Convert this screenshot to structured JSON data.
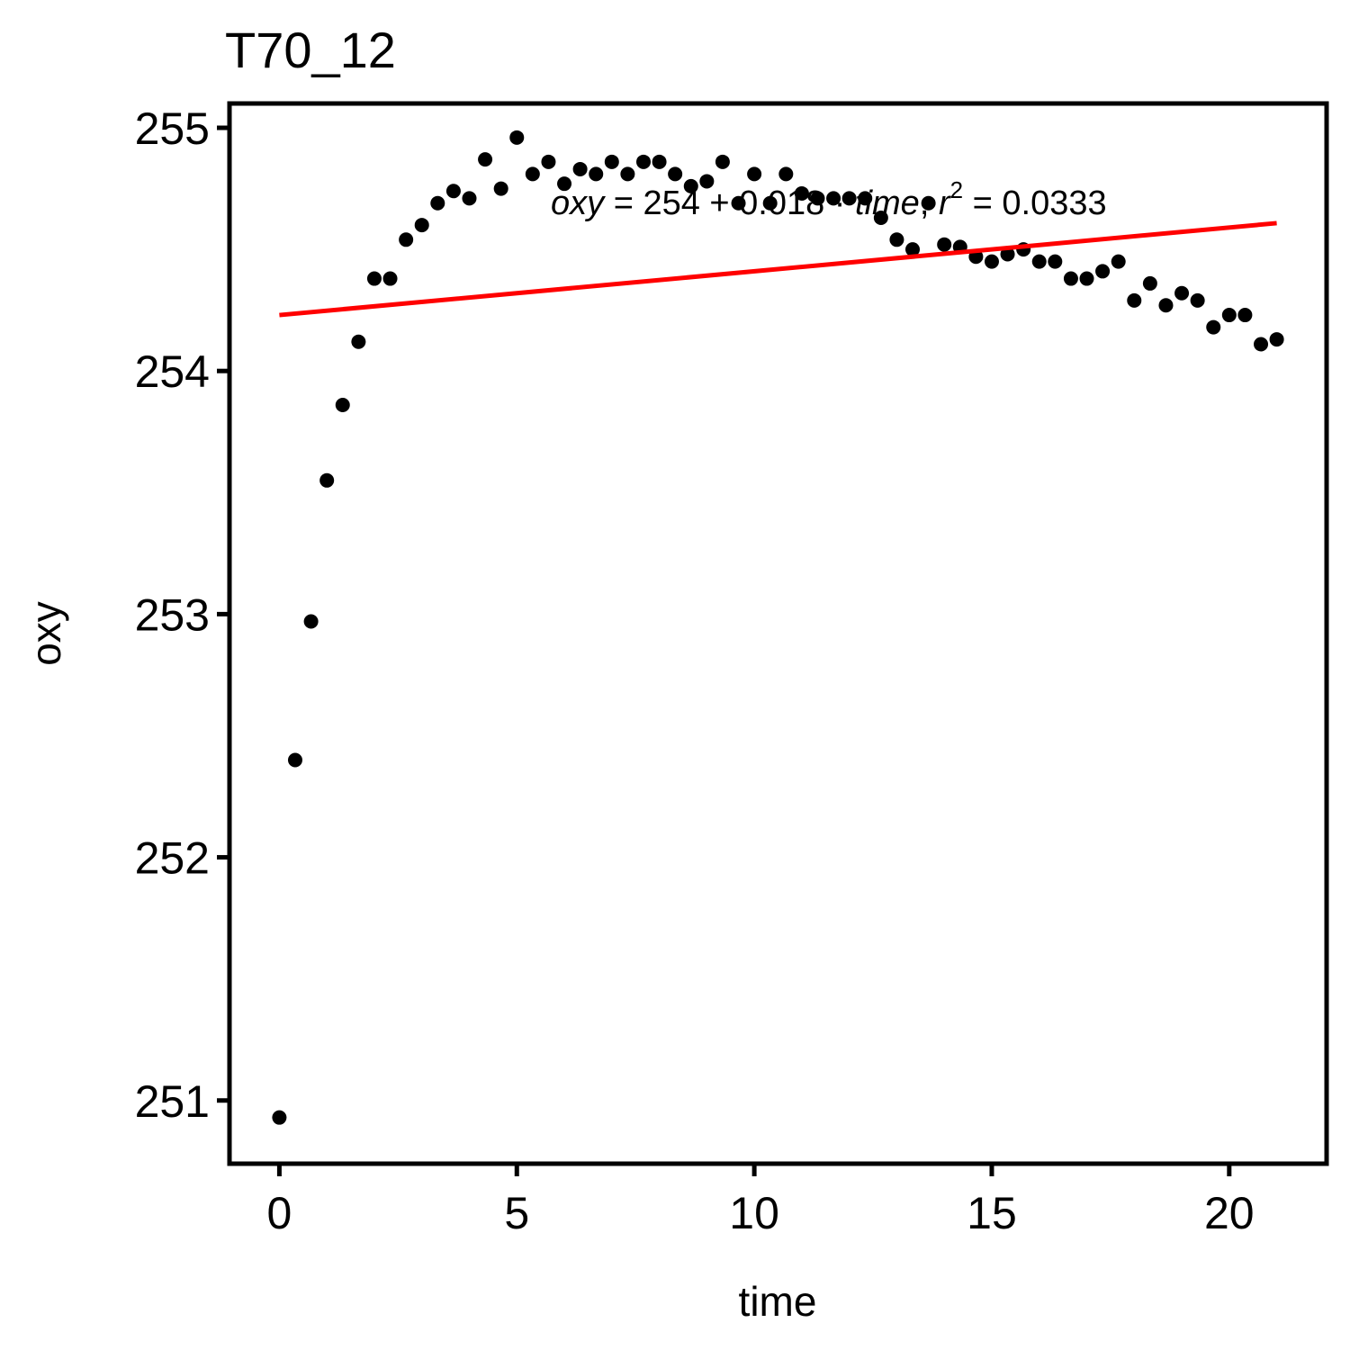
{
  "chart_data": {
    "type": "scatter",
    "title": "T70_12",
    "xlabel": "time",
    "ylabel": "oxy",
    "xlim": [
      -1.05,
      22.05
    ],
    "ylim": [
      250.74,
      255.1
    ],
    "xticks": [
      0,
      5,
      10,
      15,
      20
    ],
    "yticks": [
      251,
      252,
      253,
      254,
      255
    ],
    "grid": false,
    "legend": "none",
    "point_color": "#000000",
    "line_color": "#ff0000",
    "series": [
      {
        "x": [
          0,
          0.333,
          0.667,
          1,
          1.333,
          1.667,
          2,
          2.333,
          2.667,
          3,
          3.333,
          3.667,
          4,
          4.333,
          4.667,
          5,
          5.333,
          5.667,
          6,
          6.333,
          6.667,
          7,
          7.333,
          7.667,
          8,
          8.333,
          8.667,
          9,
          9.333,
          9.667,
          10,
          10.333,
          10.667,
          11,
          11.333,
          11.667,
          12,
          12.333,
          12.667,
          13,
          13.333,
          13.667,
          14,
          14.333,
          14.667,
          15,
          15.333,
          15.667,
          16,
          16.333,
          16.667,
          17,
          17.333,
          17.667,
          18,
          18.333,
          18.667,
          19,
          19.333,
          19.667,
          20,
          20.333,
          20.667,
          21
        ],
        "y": [
          250.93,
          252.4,
          252.97,
          253.55,
          253.86,
          254.12,
          254.38,
          254.38,
          254.54,
          254.6,
          254.69,
          254.74,
          254.71,
          254.87,
          254.75,
          254.96,
          254.81,
          254.86,
          254.77,
          254.83,
          254.81,
          254.86,
          254.81,
          254.86,
          254.86,
          254.81,
          254.76,
          254.78,
          254.86,
          254.69,
          254.81,
          254.69,
          254.81,
          254.73,
          254.71,
          254.71,
          254.71,
          254.71,
          254.63,
          254.54,
          254.5,
          254.69,
          254.52,
          254.51,
          254.47,
          254.45,
          254.48,
          254.5,
          254.45,
          254.45,
          254.38,
          254.38,
          254.41,
          254.45,
          254.29,
          254.36,
          254.27,
          254.32,
          254.29,
          254.18,
          254.23,
          254.23,
          254.11,
          254.13
        ]
      }
    ],
    "regression": {
      "intercept": 254.23,
      "slope": 0.018,
      "x_range": [
        0,
        21
      ]
    },
    "annotation": {
      "lhs": "oxy",
      "eq_sign": " = ",
      "rhs": "254 + 0.018 · ",
      "var": "time",
      "sep": ",  ",
      "r": "r",
      "sup": "2",
      "r2_value": " = 0.0333"
    }
  }
}
